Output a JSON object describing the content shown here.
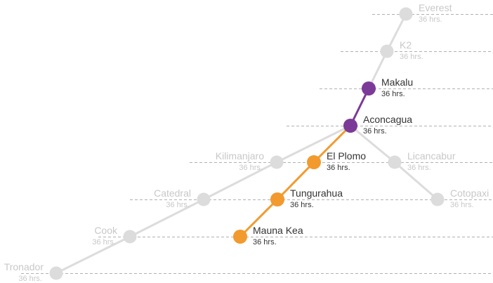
{
  "chart_data": {
    "type": "line",
    "title": "",
    "xlabel": "",
    "ylabel": "",
    "grid": "dashed horizontal guide lines per peak",
    "colors": {
      "inactive": "#dcdcdc",
      "inactive_text": "#c8c8c8",
      "active_text": "#333333",
      "guide": "#b0b0b0",
      "purple": "#7b3a98",
      "orange": "#f29a2e"
    },
    "peaks": [
      {
        "name": "Everest",
        "hours": "36 hrs.",
        "status": "inactive"
      },
      {
        "name": "K2",
        "hours": "36 hrs.",
        "status": "inactive"
      },
      {
        "name": "Makalu",
        "hours": "36 hrs.",
        "status": "purple"
      },
      {
        "name": "Aconcagua",
        "hours": "36 hrs.",
        "status": "purple"
      },
      {
        "name": "El Plomo",
        "hours": "36 hrs.",
        "status": "orange"
      },
      {
        "name": "Kilimanjaro",
        "hours": "36 hrs.",
        "status": "inactive"
      },
      {
        "name": "Licancabur",
        "hours": "36 hrs.",
        "status": "inactive"
      },
      {
        "name": "Tungurahua",
        "hours": "36 hrs.",
        "status": "orange"
      },
      {
        "name": "Catedral",
        "hours": "36 hrs.",
        "status": "inactive"
      },
      {
        "name": "Cotopaxi",
        "hours": "36 hrs.",
        "status": "inactive"
      },
      {
        "name": "Mauna Kea",
        "hours": "36 hrs.",
        "status": "orange"
      },
      {
        "name": "Cook",
        "hours": "36 hrs.",
        "status": "inactive"
      },
      {
        "name": "Tronador",
        "hours": "36 hrs.",
        "status": "inactive"
      }
    ],
    "links": [
      {
        "from": "Everest",
        "to": "K2",
        "status": "inactive"
      },
      {
        "from": "K2",
        "to": "Makalu",
        "status": "inactive"
      },
      {
        "from": "Makalu",
        "to": "Aconcagua",
        "status": "purple"
      },
      {
        "from": "Aconcagua",
        "to": "Kilimanjaro",
        "status": "inactive"
      },
      {
        "from": "Kilimanjaro",
        "to": "Catedral",
        "status": "inactive"
      },
      {
        "from": "Catedral",
        "to": "Cook",
        "status": "inactive"
      },
      {
        "from": "Cook",
        "to": "Tronador",
        "status": "inactive"
      },
      {
        "from": "Aconcagua",
        "to": "Licancabur",
        "status": "inactive"
      },
      {
        "from": "Licancabur",
        "to": "Cotopaxi",
        "status": "inactive"
      },
      {
        "from": "Aconcagua",
        "to": "El Plomo",
        "status": "orange"
      },
      {
        "from": "El Plomo",
        "to": "Tungurahua",
        "status": "orange"
      },
      {
        "from": "Tungurahua",
        "to": "Mauna Kea",
        "status": "orange"
      }
    ]
  }
}
